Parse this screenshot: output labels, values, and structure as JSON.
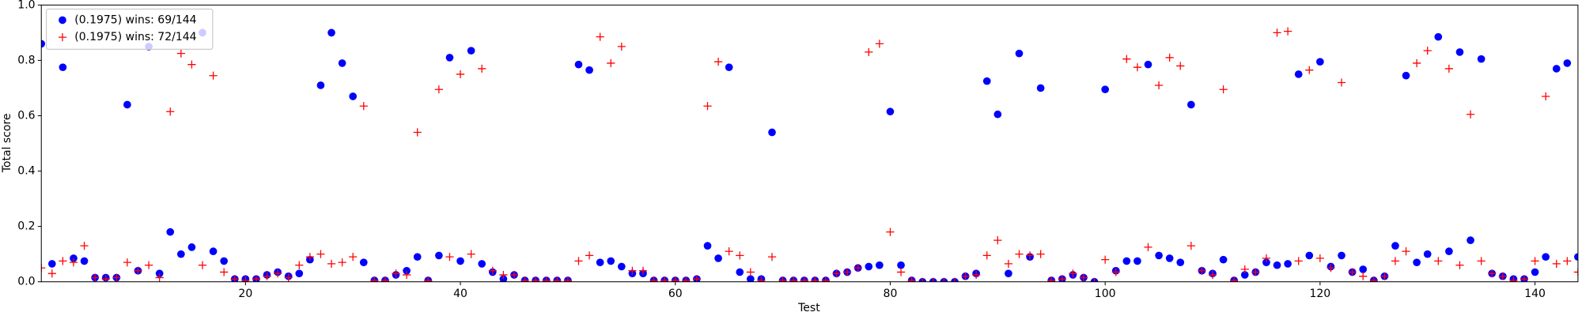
{
  "chart_data": {
    "type": "scatter",
    "x_label": "Test",
    "y_label": "Total score",
    "xlim": [
      1,
      144
    ],
    "ylim": [
      0,
      1
    ],
    "xticks": [
      20,
      40,
      60,
      80,
      100,
      120,
      140
    ],
    "yticks": [
      {
        "value": 0,
        "label": "0.0"
      },
      0.2,
      0.4,
      0.6,
      0.8,
      {
        "value": 1,
        "label": "1.0"
      }
    ],
    "grid": false,
    "legend": "upper left",
    "x": [
      1,
      2,
      3,
      4,
      5,
      6,
      7,
      8,
      9,
      10,
      11,
      12,
      13,
      14,
      15,
      16,
      17,
      18,
      19,
      20,
      21,
      22,
      23,
      24,
      25,
      26,
      27,
      28,
      29,
      30,
      31,
      32,
      33,
      34,
      35,
      36,
      37,
      38,
      39,
      40,
      41,
      42,
      43,
      44,
      45,
      46,
      47,
      48,
      49,
      50,
      51,
      52,
      53,
      54,
      55,
      56,
      57,
      58,
      59,
      60,
      61,
      62,
      63,
      64,
      65,
      66,
      67,
      68,
      69,
      70,
      71,
      72,
      73,
      74,
      75,
      76,
      77,
      78,
      79,
      80,
      81,
      82,
      83,
      84,
      85,
      86,
      87,
      88,
      89,
      90,
      91,
      92,
      93,
      94,
      95,
      96,
      97,
      98,
      99,
      100,
      101,
      102,
      103,
      104,
      105,
      106,
      107,
      108,
      109,
      110,
      111,
      112,
      113,
      114,
      115,
      116,
      117,
      118,
      119,
      120,
      121,
      122,
      123,
      124,
      125,
      126,
      127,
      128,
      129,
      130,
      131,
      132,
      133,
      134,
      135,
      136,
      137,
      138,
      139,
      140,
      141,
      142,
      143,
      144
    ],
    "series": [
      {
        "name": "(0.1975) wins: 69/144",
        "color": "#0000ff",
        "marker": "circle",
        "values": [
          0.86,
          0.065,
          0.775,
          0.085,
          0.075,
          0.015,
          0.015,
          0.015,
          0.64,
          0.04,
          0.85,
          0.03,
          0.18,
          0.1,
          0.125,
          0.9,
          0.11,
          0.075,
          0.01,
          0.01,
          0.01,
          0.025,
          0.035,
          0.02,
          0.03,
          0.08,
          0.71,
          0.9,
          0.79,
          0.67,
          0.07,
          0.005,
          0.005,
          0.025,
          0.04,
          0.09,
          0.005,
          0.095,
          0.81,
          0.075,
          0.835,
          0.065,
          0.035,
          0.01,
          0.025,
          0.005,
          0.005,
          0.005,
          0.005,
          0.005,
          0.785,
          0.765,
          0.07,
          0.075,
          0.055,
          0.03,
          0.03,
          0.005,
          0.005,
          0.005,
          0.005,
          0.01,
          0.13,
          0.085,
          0.775,
          0.035,
          0.01,
          0.01,
          0.54,
          0.005,
          0.005,
          0.005,
          0.005,
          0.005,
          0.03,
          0.035,
          0.05,
          0.055,
          0.06,
          0.615,
          0.06,
          0.005,
          0,
          0,
          0,
          0,
          0.02,
          0.03,
          0.725,
          0.605,
          0.03,
          0.825,
          0.09,
          0.7,
          0.005,
          0.01,
          0.025,
          0.015,
          0,
          0.695,
          0.04,
          0.075,
          0.075,
          0.785,
          0.095,
          0.085,
          0.07,
          0.64,
          0.04,
          0.03,
          0.08,
          0.005,
          0.025,
          0.035,
          0.07,
          0.06,
          0.065,
          0.75,
          0.095,
          0.795,
          0.055,
          0.095,
          0.035,
          0.045,
          0.005,
          0.02,
          0.13,
          0.745,
          0.07,
          0.1,
          0.885,
          0.11,
          0.83,
          0.15,
          0.805,
          0.03,
          0.02,
          0.01,
          0.01,
          0.035,
          0.09,
          0.77,
          0.79,
          0.09
        ]
      },
      {
        "name": "(0.1975) wins: 72/144",
        "color": "#ff0000",
        "marker": "plus",
        "values": [
          0.05,
          0.03,
          0.075,
          0.07,
          0.13,
          0.015,
          0.01,
          0.015,
          0.07,
          0.04,
          0.06,
          0.015,
          0.615,
          0.825,
          0.785,
          0.06,
          0.745,
          0.035,
          0.01,
          0.005,
          0.01,
          0.02,
          0.03,
          0.015,
          0.06,
          0.09,
          0.1,
          0.065,
          0.07,
          0.09,
          0.635,
          0.005,
          0.005,
          0.03,
          0.025,
          0.54,
          0.005,
          0.695,
          0.09,
          0.75,
          0.1,
          0.77,
          0.04,
          0.025,
          0.025,
          0.005,
          0.005,
          0.005,
          0.005,
          0.005,
          0.075,
          0.095,
          0.885,
          0.79,
          0.85,
          0.04,
          0.04,
          0.005,
          0.005,
          0.005,
          0.005,
          0.01,
          0.635,
          0.795,
          0.11,
          0.095,
          0.035,
          0.005,
          0.09,
          0.005,
          0.005,
          0.005,
          0.005,
          0.005,
          0.03,
          0.035,
          0.05,
          0.83,
          0.86,
          0.18,
          0.035,
          0.005,
          0,
          0,
          0,
          0,
          0.02,
          0.025,
          0.095,
          0.15,
          0.065,
          0.1,
          0.095,
          0.1,
          0.005,
          0.01,
          0.03,
          0.015,
          0,
          0.08,
          0.035,
          0.805,
          0.775,
          0.125,
          0.71,
          0.81,
          0.78,
          0.13,
          0.04,
          0.025,
          0.695,
          0.005,
          0.045,
          0.035,
          0.085,
          0.9,
          0.905,
          0.075,
          0.765,
          0.085,
          0.05,
          0.72,
          0.035,
          0.02,
          0.005,
          0.02,
          0.075,
          0.11,
          0.79,
          0.835,
          0.075,
          0.77,
          0.06,
          0.605,
          0.075,
          0.03,
          0.02,
          0.005,
          0.01,
          0.075,
          0.67,
          0.065,
          0.075,
          0.035
        ]
      }
    ]
  }
}
